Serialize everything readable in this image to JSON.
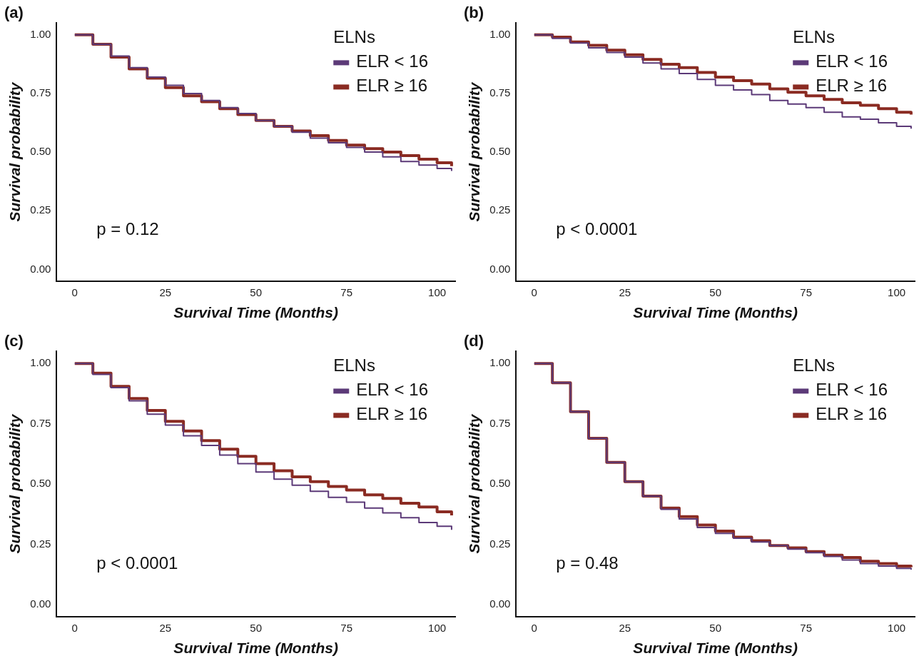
{
  "chart_data": [
    {
      "type": "step",
      "title": "(a)",
      "xlabel": "Survival Time (Months)",
      "ylabel": "Survival probability",
      "legend_title": "ELNs",
      "legend": "top right",
      "grid": false,
      "annotations": [
        "p = 0.12"
      ],
      "x": [
        0,
        2,
        5,
        10,
        15,
        20,
        25,
        30,
        35,
        40,
        45,
        50,
        55,
        60,
        65,
        70,
        75,
        80,
        85,
        90,
        95,
        100,
        104
      ],
      "xlim": [
        -5,
        105
      ],
      "xticks": [
        0,
        25,
        50,
        75,
        100
      ],
      "ylim": [
        -0.05,
        1.05
      ],
      "yticks": [
        {
          "value": 0,
          "label": "0.00"
        },
        {
          "value": 0.25,
          "label": "0.25"
        },
        {
          "value": 0.5,
          "label": "0.50"
        },
        {
          "value": 0.75,
          "label": "0.75"
        },
        {
          "value": 1,
          "label": "1.00"
        }
      ],
      "series": [
        {
          "name": "ELR < 16",
          "color": "#5c3a78",
          "values": [
            1,
            1,
            0.96,
            0.91,
            0.86,
            0.82,
            0.785,
            0.75,
            0.72,
            0.69,
            0.665,
            0.635,
            0.61,
            0.585,
            0.56,
            0.54,
            0.52,
            0.5,
            0.48,
            0.46,
            0.445,
            0.43,
            0.42
          ]
        },
        {
          "name": "ELR ≥ 16",
          "color": "#8a2b22",
          "values": [
            1,
            1,
            0.96,
            0.905,
            0.855,
            0.815,
            0.775,
            0.74,
            0.715,
            0.685,
            0.66,
            0.635,
            0.61,
            0.59,
            0.57,
            0.55,
            0.53,
            0.515,
            0.5,
            0.485,
            0.47,
            0.455,
            0.44
          ]
        }
      ]
    },
    {
      "type": "step",
      "title": "(b)",
      "xlabel": "Survival Time (Months)",
      "ylabel": "Survival probability",
      "legend_title": "ELNs",
      "legend": "top right",
      "grid": false,
      "annotations": [
        "p < 0.0001"
      ],
      "x": [
        0,
        2,
        5,
        10,
        15,
        20,
        25,
        30,
        35,
        40,
        45,
        50,
        55,
        60,
        65,
        70,
        75,
        80,
        85,
        90,
        95,
        100,
        104
      ],
      "xlim": [
        -5,
        105
      ],
      "xticks": [
        0,
        25,
        50,
        75,
        100
      ],
      "ylim": [
        -0.05,
        1.05
      ],
      "yticks": [
        {
          "value": 0,
          "label": "0.00"
        },
        {
          "value": 0.25,
          "label": "0.25"
        },
        {
          "value": 0.5,
          "label": "0.50"
        },
        {
          "value": 0.75,
          "label": "0.75"
        },
        {
          "value": 1,
          "label": "1.00"
        }
      ],
      "series": [
        {
          "name": "ELR < 16",
          "color": "#5c3a78",
          "values": [
            1,
            1,
            0.985,
            0.965,
            0.945,
            0.925,
            0.905,
            0.88,
            0.855,
            0.835,
            0.81,
            0.785,
            0.765,
            0.745,
            0.72,
            0.705,
            0.69,
            0.67,
            0.65,
            0.64,
            0.625,
            0.61,
            0.6
          ]
        },
        {
          "name": "ELR ≥ 16",
          "color": "#8a2b22",
          "values": [
            1,
            1,
            0.99,
            0.97,
            0.955,
            0.935,
            0.915,
            0.895,
            0.875,
            0.86,
            0.84,
            0.82,
            0.805,
            0.79,
            0.77,
            0.755,
            0.74,
            0.725,
            0.71,
            0.7,
            0.685,
            0.67,
            0.66
          ]
        }
      ]
    },
    {
      "type": "step",
      "title": "(c)",
      "xlabel": "Survival Time (Months)",
      "ylabel": "Survival probability",
      "legend_title": "ELNs",
      "legend": "top right",
      "grid": false,
      "annotations": [
        "p < 0.0001"
      ],
      "x": [
        0,
        2,
        5,
        10,
        15,
        20,
        25,
        30,
        35,
        40,
        45,
        50,
        55,
        60,
        65,
        70,
        75,
        80,
        85,
        90,
        95,
        100,
        104
      ],
      "xlim": [
        -5,
        105
      ],
      "xticks": [
        0,
        25,
        50,
        75,
        100
      ],
      "ylim": [
        -0.05,
        1.05
      ],
      "yticks": [
        {
          "value": 0,
          "label": "0.00"
        },
        {
          "value": 0.25,
          "label": "0.25"
        },
        {
          "value": 0.5,
          "label": "0.50"
        },
        {
          "value": 0.75,
          "label": "0.75"
        },
        {
          "value": 1,
          "label": "1.00"
        }
      ],
      "series": [
        {
          "name": "ELR < 16",
          "color": "#5c3a78",
          "values": [
            1,
            1,
            0.955,
            0.9,
            0.845,
            0.79,
            0.745,
            0.7,
            0.66,
            0.62,
            0.585,
            0.55,
            0.52,
            0.495,
            0.47,
            0.445,
            0.425,
            0.4,
            0.38,
            0.36,
            0.34,
            0.325,
            0.31
          ]
        },
        {
          "name": "ELR ≥ 16",
          "color": "#8a2b22",
          "values": [
            1,
            1,
            0.96,
            0.905,
            0.855,
            0.805,
            0.76,
            0.72,
            0.68,
            0.645,
            0.615,
            0.585,
            0.555,
            0.53,
            0.51,
            0.49,
            0.475,
            0.455,
            0.44,
            0.42,
            0.405,
            0.385,
            0.37
          ]
        }
      ]
    },
    {
      "type": "step",
      "title": "(d)",
      "xlabel": "Survival Time (Months)",
      "ylabel": "Survival probability",
      "legend_title": "ELNs",
      "legend": "top right",
      "grid": false,
      "annotations": [
        "p = 0.48"
      ],
      "x": [
        0,
        2,
        5,
        10,
        15,
        20,
        25,
        30,
        35,
        40,
        45,
        50,
        55,
        60,
        65,
        70,
        75,
        80,
        85,
        90,
        95,
        100,
        104
      ],
      "xlim": [
        -5,
        105
      ],
      "xticks": [
        0,
        25,
        50,
        75,
        100
      ],
      "ylim": [
        -0.05,
        1.05
      ],
      "yticks": [
        {
          "value": 0,
          "label": "0.00"
        },
        {
          "value": 0.25,
          "label": "0.25"
        },
        {
          "value": 0.5,
          "label": "0.50"
        },
        {
          "value": 0.75,
          "label": "0.75"
        },
        {
          "value": 1,
          "label": "1.00"
        }
      ],
      "series": [
        {
          "name": "ELR < 16",
          "color": "#5c3a78",
          "values": [
            1,
            1,
            0.92,
            0.8,
            0.69,
            0.59,
            0.51,
            0.45,
            0.395,
            0.355,
            0.32,
            0.295,
            0.275,
            0.26,
            0.245,
            0.23,
            0.215,
            0.2,
            0.185,
            0.17,
            0.16,
            0.15,
            0.145
          ]
        },
        {
          "name": "ELR ≥ 16",
          "color": "#8a2b22",
          "values": [
            1,
            1,
            0.92,
            0.8,
            0.69,
            0.59,
            0.51,
            0.45,
            0.4,
            0.365,
            0.33,
            0.305,
            0.28,
            0.265,
            0.245,
            0.235,
            0.22,
            0.205,
            0.195,
            0.18,
            0.17,
            0.16,
            0.155
          ]
        }
      ]
    }
  ]
}
